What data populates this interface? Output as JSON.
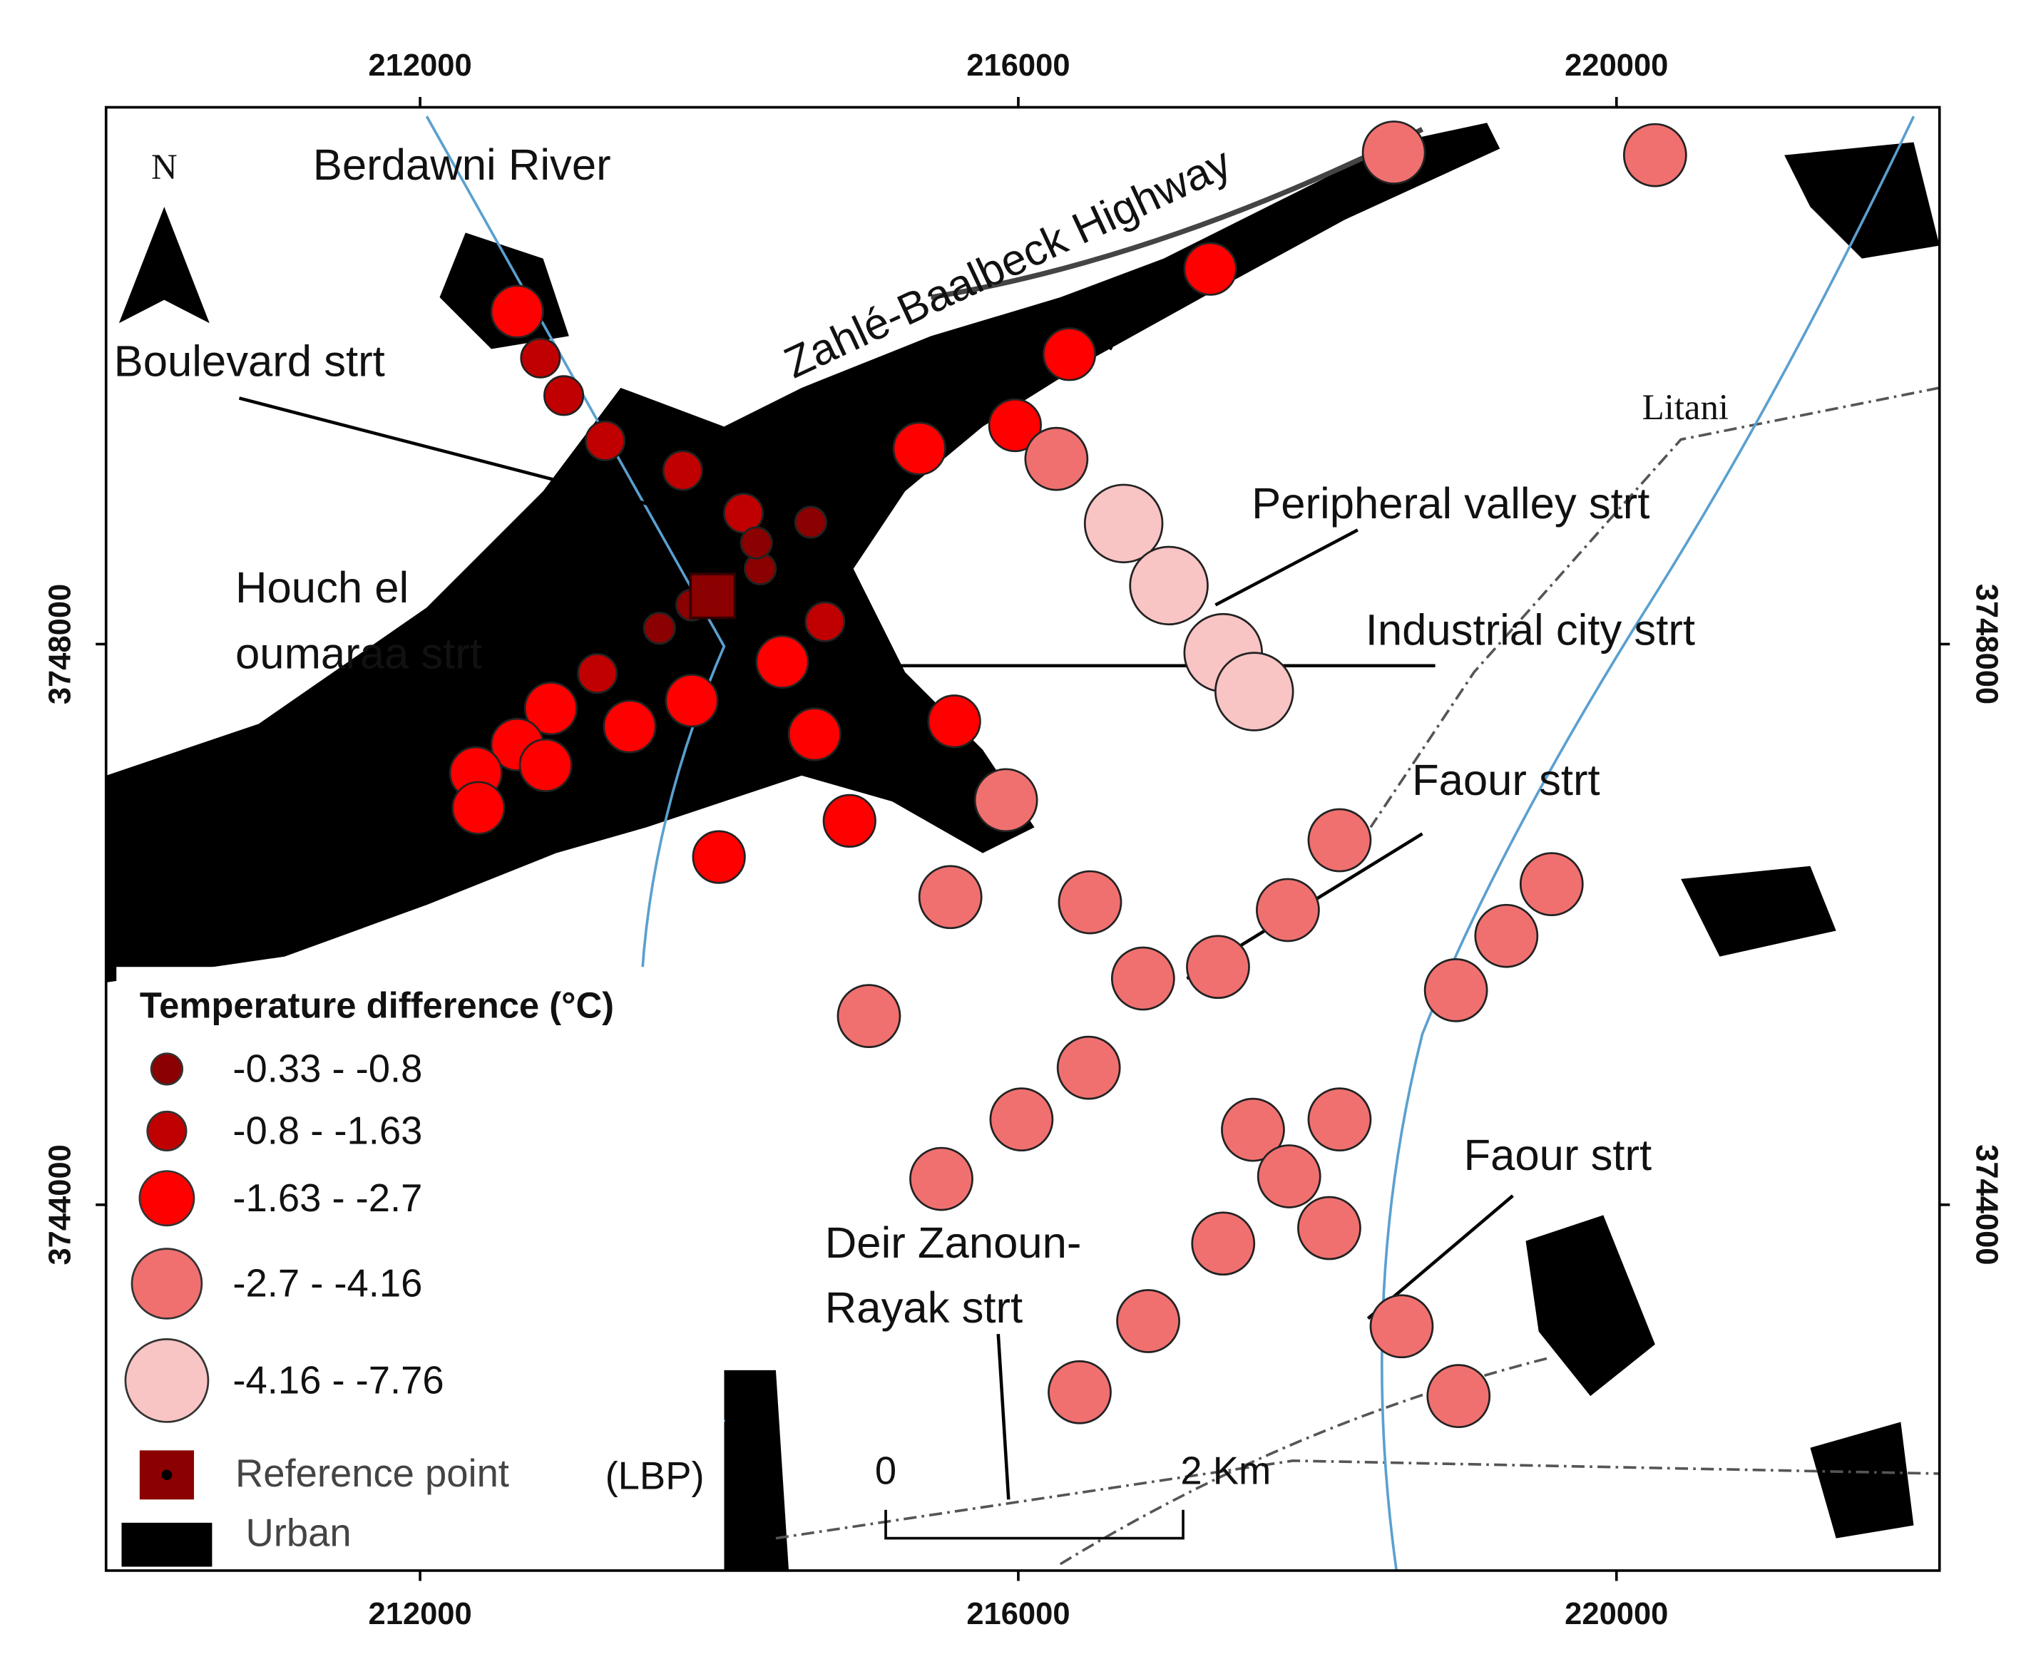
{
  "map": {
    "xlim": [
      209900,
      222160
    ],
    "ylim": [
      3741390,
      3751830
    ],
    "x_ticks": [
      212000,
      216000,
      220000
    ],
    "y_ticks": [
      3748000,
      3744000
    ],
    "north": "N",
    "labels": {
      "berdawni": "Berdawni River",
      "highway": "Zahlé-Baalbeck Highway",
      "boulevard": "Boulevard strt",
      "litani": "Litani",
      "peripheral": "Peripheral valley strt",
      "houch": [
        "Houch el",
        "oumaraa strt"
      ],
      "industrial": "Industrial city strt",
      "faour_1": "Faour strt",
      "faour_2": "Faour strt",
      "deir": [
        "Deir Zanoun-",
        "Rayak strt"
      ]
    }
  },
  "legend": {
    "title": "Temperature difference (°C)",
    "classes": [
      {
        "label": "-0.33 - -0.8",
        "color": "#8b0000"
      },
      {
        "label": "-0.8 - -1.63",
        "color": "#c00000"
      },
      {
        "label": "-1.63 - -2.7",
        "color": "#ff0000"
      },
      {
        "label": "-2.7 - -4.16",
        "color": "#f07070"
      },
      {
        "label": "-4.16 - -7.76",
        "color": "#f9c4c4"
      }
    ],
    "reference": "Reference point",
    "currency": "(LBP)",
    "urban": "Urban"
  },
  "scale_bar": {
    "start": "0",
    "end": "2 Km"
  }
}
